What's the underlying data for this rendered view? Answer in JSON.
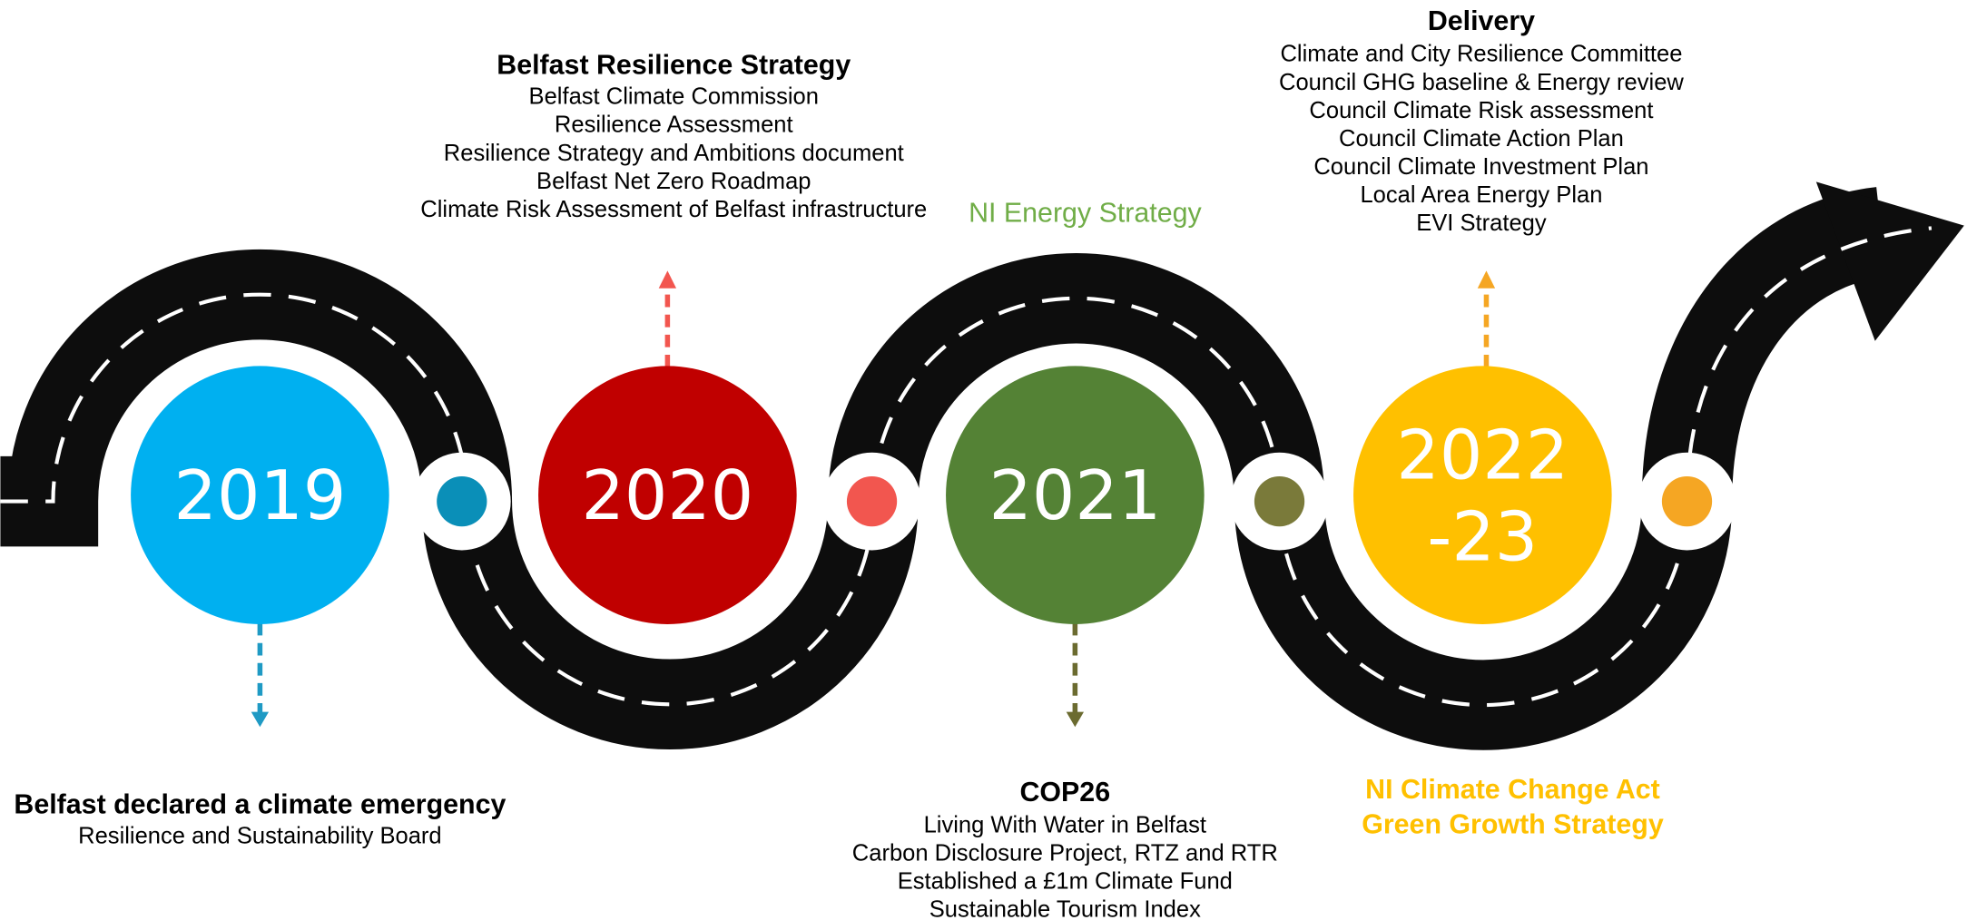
{
  "milestones": [
    {
      "year": "2019",
      "heading": "Belfast declared a climate emergency",
      "items": [
        "Resilience and Sustainability Board"
      ]
    },
    {
      "year": "2020",
      "heading": "Belfast Resilience Strategy",
      "items": [
        "Belfast Climate Commission",
        "Resilience Assessment",
        "Resilience Strategy and Ambitions document",
        "Belfast Net  Zero Roadmap",
        "Climate Risk Assessment of Belfast infrastructure"
      ]
    },
    {
      "year": "2021",
      "side_note": "NI Energy Strategy",
      "heading": "COP26",
      "items": [
        "Living With Water in Belfast",
        "Carbon Disclosure Project, RTZ and RTR",
        "Established a £1m Climate Fund",
        "Sustainable Tourism Index"
      ]
    },
    {
      "year": [
        "2022",
        "-23"
      ],
      "heading": "Delivery",
      "items": [
        "Climate and City Resilience Committee",
        "Council GHG baseline & Energy review",
        "Council Climate Risk assessment",
        "Council Climate Action Plan",
        "Council Climate Investment Plan",
        "Local Area Energy Plan",
        "EVI Strategy"
      ],
      "side_notes": [
        "NI Climate Change Act",
        "Green Growth Strategy"
      ]
    }
  ]
}
